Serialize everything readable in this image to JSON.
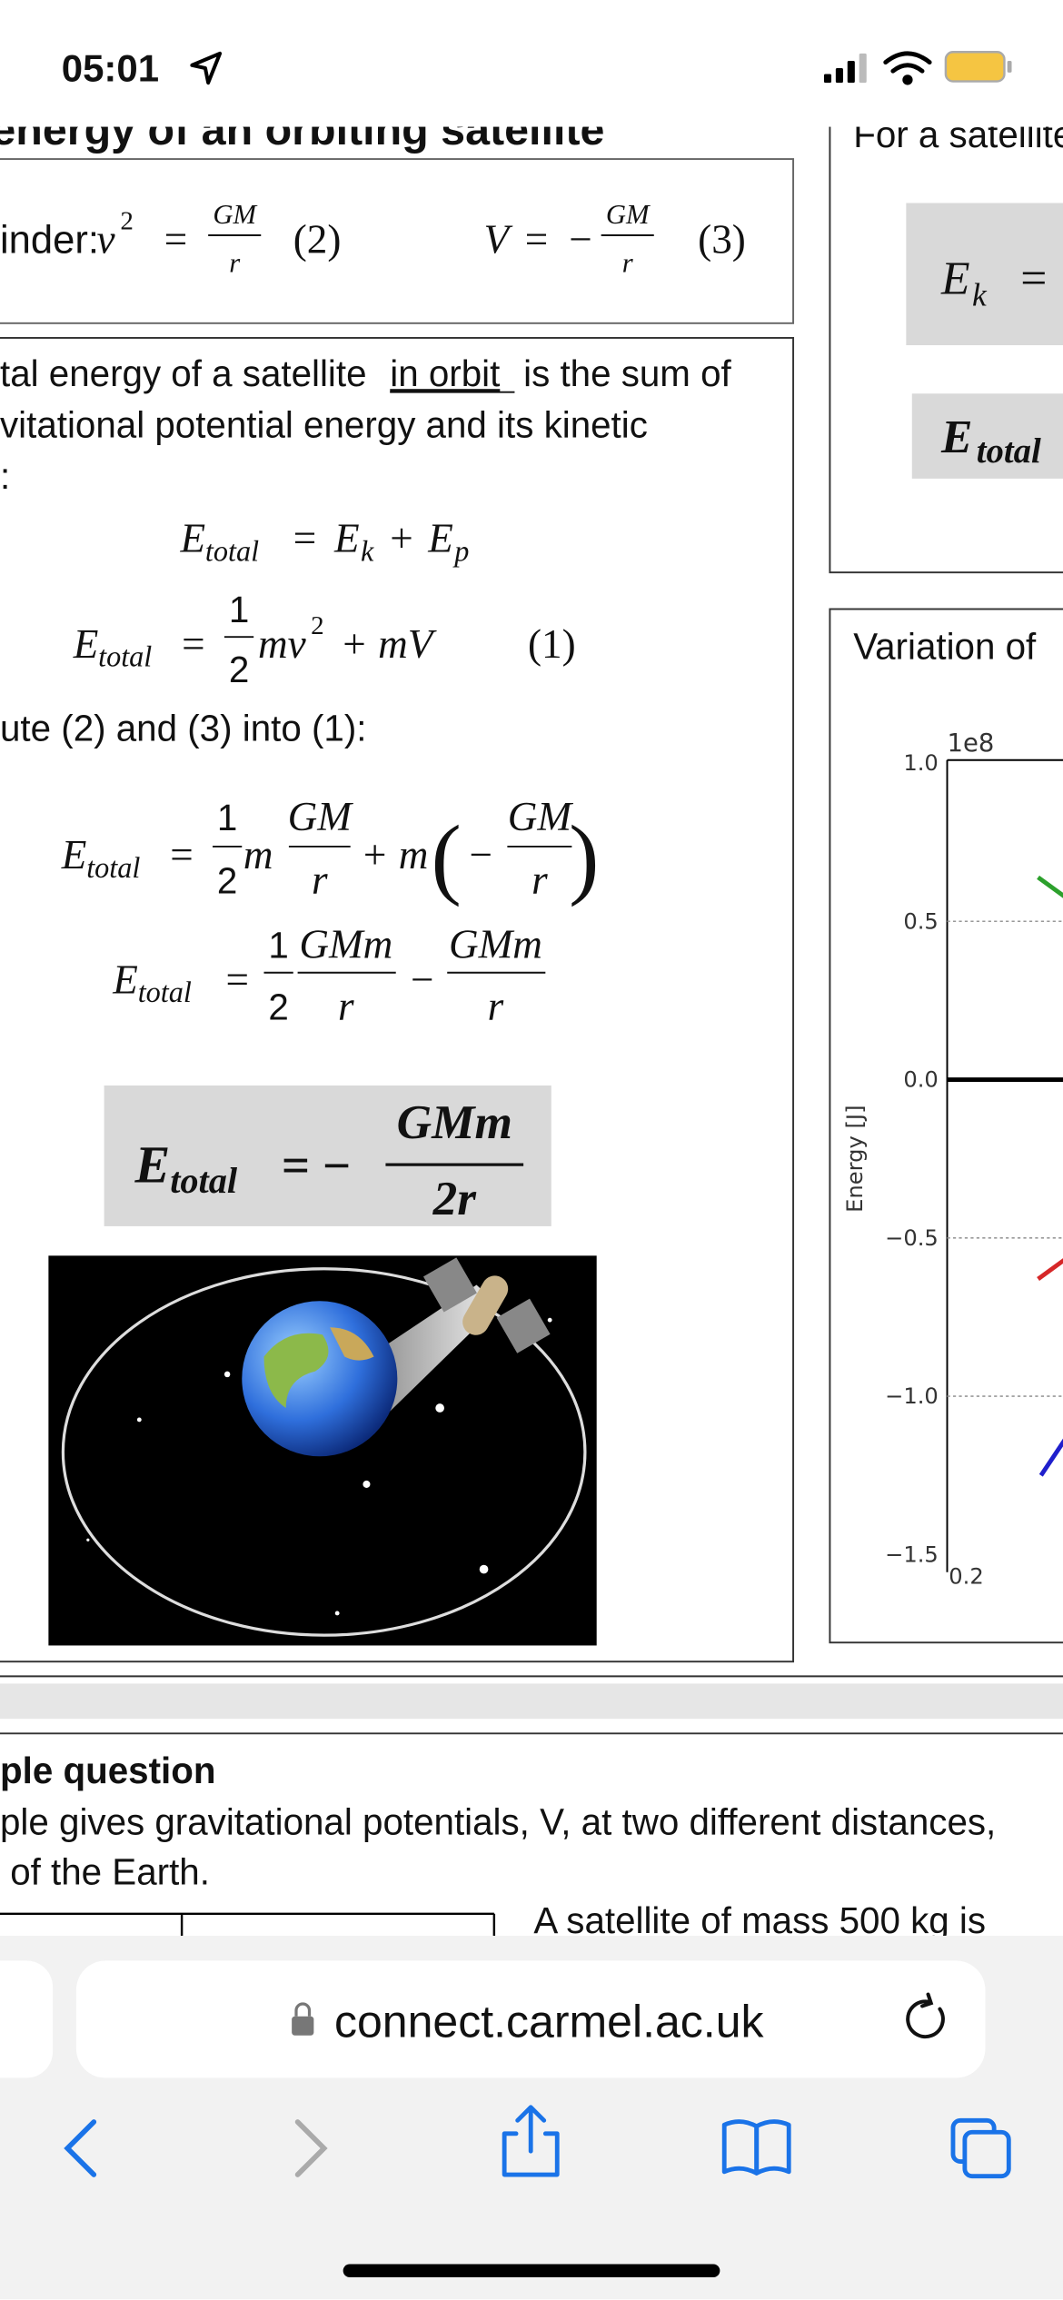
{
  "status_bar": {
    "time": "05:01"
  },
  "left": {
    "heading": "energy of an orbiting satellite",
    "reminder": {
      "label": "inder:",
      "eq2": [
        "v",
        "2",
        "=",
        "GM",
        "r",
        "(2)"
      ],
      "eq3": [
        "V",
        "=",
        "−",
        "GM",
        "r",
        "(3)"
      ]
    },
    "intro": [
      "tal energy of a satellite",
      "in orbit",
      "is the sum of",
      "vitational potential energy and its kinetic",
      ":"
    ],
    "eq_sum": [
      "E",
      "total",
      "=",
      "E",
      "k",
      "+",
      "E",
      "p"
    ],
    "eq_1": [
      "E",
      "total",
      "=",
      "1",
      "2",
      "mv",
      "2",
      "+ mV",
      "(1)"
    ],
    "substitute": "ute (2) and (3) into (1):",
    "eq_sub": [
      "E",
      "total",
      "=",
      "1",
      "2",
      "m",
      "GM",
      "r",
      "+ m",
      "(",
      "−",
      "GM",
      "r",
      ")"
    ],
    "eq_simplify": [
      "E",
      "total",
      "=",
      "1",
      "2",
      "GMm",
      "r",
      "−",
      "GMm",
      "r"
    ],
    "result": [
      "E",
      "total",
      "= −",
      "GMm",
      "2r"
    ]
  },
  "right": {
    "intro": "For a satellite",
    "ek": [
      "E",
      "k",
      "="
    ],
    "etotal": [
      "E",
      "total"
    ],
    "graph": {
      "title": "Variation of",
      "ylabel": "Energy [J]",
      "offset": "1e8",
      "yticks": [
        "1.0",
        "0.5",
        "0.0",
        "−0.5",
        "−1.0",
        "−1.5"
      ],
      "xtick": "0.2"
    }
  },
  "question": {
    "heading": "ple question",
    "lines": [
      "ple gives gravitational potentials, V, at two different distances,",
      " of the Earth."
    ],
    "side": "A satellite of mass 500 kg is"
  },
  "browser": {
    "url": "connect.carmel.ac.uk"
  }
}
